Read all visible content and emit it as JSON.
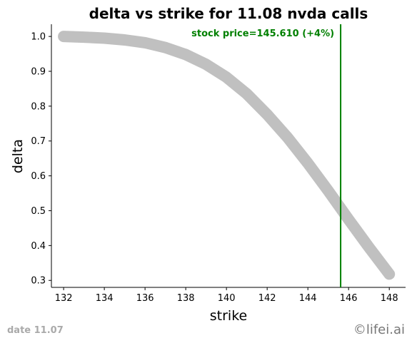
{
  "chart_data": {
    "type": "line",
    "title": "delta vs strike for 11.08 nvda calls",
    "xlabel": "strike",
    "ylabel": "delta",
    "xlim": [
      131.4,
      148.8
    ],
    "ylim": [
      0.28,
      1.035
    ],
    "xticks": [
      132,
      134,
      136,
      138,
      140,
      142,
      144,
      146,
      148
    ],
    "yticks": [
      0.3,
      0.4,
      0.5,
      0.6,
      0.7,
      0.8,
      0.9,
      1.0
    ],
    "series": [
      {
        "color": "#c0c0c0",
        "x": [
          132,
          133,
          134,
          135,
          136,
          137,
          138,
          139,
          140,
          141,
          142,
          143,
          144,
          145,
          146,
          147,
          148
        ],
        "y": [
          1.0,
          0.998,
          0.995,
          0.99,
          0.982,
          0.968,
          0.948,
          0.92,
          0.883,
          0.835,
          0.776,
          0.71,
          0.636,
          0.557,
          0.475,
          0.395,
          0.318
        ]
      }
    ],
    "vline": {
      "x": 145.61,
      "color": "#008000"
    },
    "annotation": {
      "text": "stock price=145.610 (+4%)",
      "color": "#008000"
    },
    "grid": false,
    "legend": "none"
  },
  "footer": {
    "date_text": "date 11.07",
    "brand_text": "©lifei.ai"
  }
}
